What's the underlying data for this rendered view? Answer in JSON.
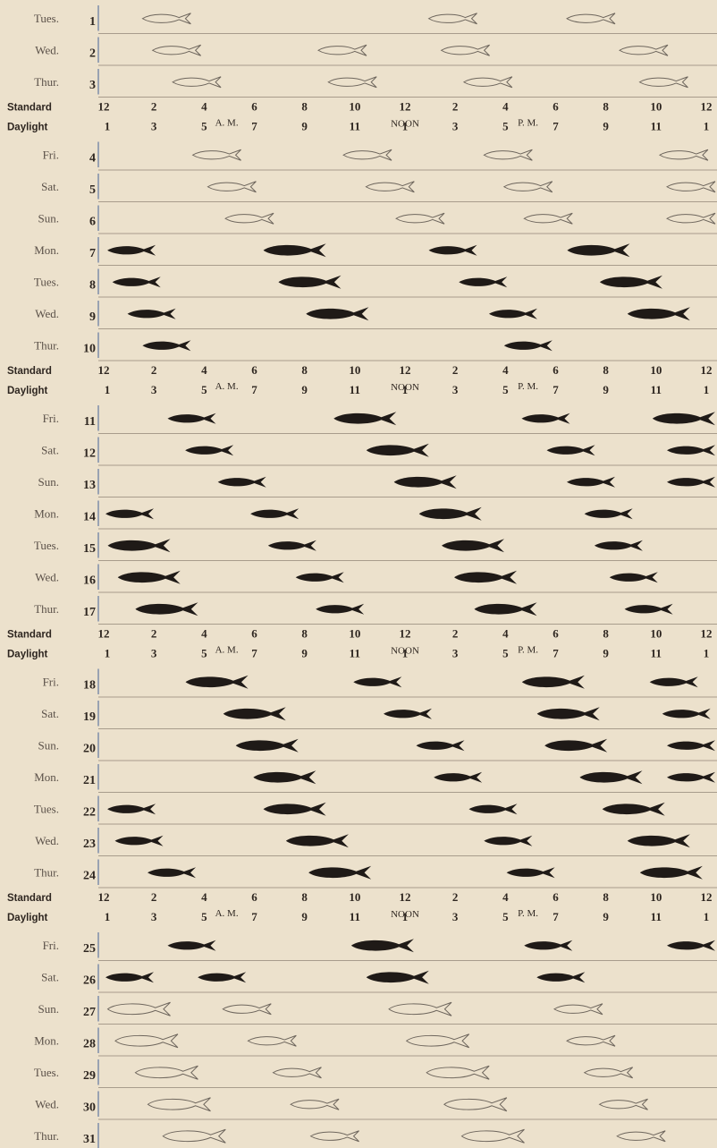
{
  "chart_data": {
    "type": "scatter",
    "description_units": "hours of standard time (0-24)",
    "days": [
      {
        "day": "Tues.",
        "date": "1",
        "marks": [
          {
            "time": 2.4,
            "size": "small",
            "active": false
          },
          {
            "time": 13.8,
            "size": "small",
            "active": false
          },
          {
            "time": 19.3,
            "size": "small",
            "active": false
          }
        ]
      },
      {
        "day": "Wed.",
        "date": "2",
        "marks": [
          {
            "time": 2.8,
            "size": "small",
            "active": false
          },
          {
            "time": 9.4,
            "size": "small",
            "active": false
          },
          {
            "time": 14.3,
            "size": "small",
            "active": false
          },
          {
            "time": 21.4,
            "size": "small",
            "active": false
          }
        ]
      },
      {
        "day": "Thur.",
        "date": "3",
        "marks": [
          {
            "time": 3.6,
            "size": "small",
            "active": false
          },
          {
            "time": 9.8,
            "size": "small",
            "active": false
          },
          {
            "time": 15.2,
            "size": "small",
            "active": false
          },
          {
            "time": 22.2,
            "size": "small",
            "active": false
          }
        ]
      },
      {
        "day": "Fri.",
        "date": "4",
        "marks": [
          {
            "time": 4.4,
            "size": "small",
            "active": false
          },
          {
            "time": 10.4,
            "size": "small",
            "active": false
          },
          {
            "time": 16.0,
            "size": "small",
            "active": false
          },
          {
            "time": 23.0,
            "size": "small",
            "active": false
          }
        ]
      },
      {
        "day": "Sat.",
        "date": "5",
        "marks": [
          {
            "time": 5.0,
            "size": "small",
            "active": false
          },
          {
            "time": 11.3,
            "size": "small",
            "active": false
          },
          {
            "time": 16.8,
            "size": "small",
            "active": false
          },
          {
            "time": 23.5,
            "size": "small",
            "active": false
          }
        ]
      },
      {
        "day": "Sun.",
        "date": "6",
        "marks": [
          {
            "time": 5.7,
            "size": "small",
            "active": false
          },
          {
            "time": 12.5,
            "size": "small",
            "active": false
          },
          {
            "time": 17.6,
            "size": "small",
            "active": false
          },
          {
            "time": 23.8,
            "size": "small",
            "active": false
          }
        ]
      },
      {
        "day": "Mon.",
        "date": "7",
        "marks": [
          {
            "time": 1.0,
            "size": "small",
            "active": true
          },
          {
            "time": 7.5,
            "size": "medium",
            "active": true
          },
          {
            "time": 13.8,
            "size": "small",
            "active": true
          },
          {
            "time": 19.6,
            "size": "medium",
            "active": true
          }
        ]
      },
      {
        "day": "Tues.",
        "date": "8",
        "marks": [
          {
            "time": 1.2,
            "size": "small",
            "active": true
          },
          {
            "time": 8.1,
            "size": "medium",
            "active": true
          },
          {
            "time": 15.0,
            "size": "small",
            "active": true
          },
          {
            "time": 20.9,
            "size": "medium",
            "active": true
          }
        ]
      },
      {
        "day": "Wed.",
        "date": "9",
        "marks": [
          {
            "time": 1.8,
            "size": "small",
            "active": true
          },
          {
            "time": 9.2,
            "size": "medium",
            "active": true
          },
          {
            "time": 16.2,
            "size": "small",
            "active": true
          },
          {
            "time": 22.0,
            "size": "medium",
            "active": true
          }
        ]
      },
      {
        "day": "Thur.",
        "date": "10",
        "marks": [
          {
            "time": 2.4,
            "size": "small",
            "active": true
          },
          {
            "time": 16.8,
            "size": "small",
            "active": true
          }
        ]
      },
      {
        "day": "Fri.",
        "date": "11",
        "marks": [
          {
            "time": 3.4,
            "size": "small",
            "active": true
          },
          {
            "time": 10.3,
            "size": "medium",
            "active": true
          },
          {
            "time": 17.5,
            "size": "small",
            "active": true
          },
          {
            "time": 23.0,
            "size": "medium",
            "active": true
          }
        ]
      },
      {
        "day": "Sat.",
        "date": "12",
        "marks": [
          {
            "time": 4.1,
            "size": "small",
            "active": true
          },
          {
            "time": 11.6,
            "size": "medium",
            "active": true
          },
          {
            "time": 18.5,
            "size": "small",
            "active": true
          },
          {
            "time": 23.7,
            "size": "small",
            "active": true
          }
        ]
      },
      {
        "day": "Sun.",
        "date": "13",
        "marks": [
          {
            "time": 5.4,
            "size": "small",
            "active": true
          },
          {
            "time": 12.7,
            "size": "medium",
            "active": true
          },
          {
            "time": 19.3,
            "size": "small",
            "active": true
          },
          {
            "time": 23.9,
            "size": "small",
            "active": true
          }
        ]
      },
      {
        "day": "Mon.",
        "date": "14",
        "marks": [
          {
            "time": 0.5,
            "size": "small",
            "active": true
          },
          {
            "time": 6.7,
            "size": "small",
            "active": true
          },
          {
            "time": 13.7,
            "size": "medium",
            "active": true
          },
          {
            "time": 20.0,
            "size": "small",
            "active": true
          }
        ]
      },
      {
        "day": "Tues.",
        "date": "15",
        "marks": [
          {
            "time": 1.3,
            "size": "medium",
            "active": true
          },
          {
            "time": 7.4,
            "size": "small",
            "active": true
          },
          {
            "time": 14.6,
            "size": "medium",
            "active": true
          },
          {
            "time": 20.4,
            "size": "small",
            "active": true
          }
        ]
      },
      {
        "day": "Wed.",
        "date": "16",
        "marks": [
          {
            "time": 1.7,
            "size": "medium",
            "active": true
          },
          {
            "time": 8.5,
            "size": "small",
            "active": true
          },
          {
            "time": 15.1,
            "size": "medium",
            "active": true
          },
          {
            "time": 21.0,
            "size": "small",
            "active": true
          }
        ]
      },
      {
        "day": "Thur.",
        "date": "17",
        "marks": [
          {
            "time": 2.4,
            "size": "medium",
            "active": true
          },
          {
            "time": 9.3,
            "size": "small",
            "active": true
          },
          {
            "time": 15.9,
            "size": "medium",
            "active": true
          },
          {
            "time": 21.6,
            "size": "small",
            "active": true
          }
        ]
      },
      {
        "day": "Fri.",
        "date": "18",
        "marks": [
          {
            "time": 4.4,
            "size": "medium",
            "active": true
          },
          {
            "time": 10.8,
            "size": "small",
            "active": true
          },
          {
            "time": 17.8,
            "size": "medium",
            "active": true
          },
          {
            "time": 22.6,
            "size": "small",
            "active": true
          }
        ]
      },
      {
        "day": "Sat.",
        "date": "19",
        "marks": [
          {
            "time": 5.9,
            "size": "medium",
            "active": true
          },
          {
            "time": 12.0,
            "size": "small",
            "active": true
          },
          {
            "time": 18.4,
            "size": "medium",
            "active": true
          },
          {
            "time": 23.1,
            "size": "small",
            "active": true
          }
        ]
      },
      {
        "day": "Sun.",
        "date": "20",
        "marks": [
          {
            "time": 6.4,
            "size": "medium",
            "active": true
          },
          {
            "time": 13.3,
            "size": "small",
            "active": true
          },
          {
            "time": 18.7,
            "size": "medium",
            "active": true
          },
          {
            "time": 23.6,
            "size": "small",
            "active": true
          }
        ]
      },
      {
        "day": "Mon.",
        "date": "21",
        "marks": [
          {
            "time": 7.1,
            "size": "medium",
            "active": true
          },
          {
            "time": 14.0,
            "size": "small",
            "active": true
          },
          {
            "time": 20.1,
            "size": "medium",
            "active": true
          },
          {
            "time": 23.8,
            "size": "small",
            "active": true
          }
        ]
      },
      {
        "day": "Tues.",
        "date": "22",
        "marks": [
          {
            "time": 1.0,
            "size": "small",
            "active": true
          },
          {
            "time": 7.5,
            "size": "medium",
            "active": true
          },
          {
            "time": 15.4,
            "size": "small",
            "active": true
          },
          {
            "time": 21.0,
            "size": "medium",
            "active": true
          }
        ]
      },
      {
        "day": "Wed.",
        "date": "23",
        "marks": [
          {
            "time": 1.3,
            "size": "small",
            "active": true
          },
          {
            "time": 8.4,
            "size": "medium",
            "active": true
          },
          {
            "time": 16.0,
            "size": "small",
            "active": true
          },
          {
            "time": 22.0,
            "size": "medium",
            "active": true
          }
        ]
      },
      {
        "day": "Thur.",
        "date": "24",
        "marks": [
          {
            "time": 2.6,
            "size": "small",
            "active": true
          },
          {
            "time": 9.3,
            "size": "medium",
            "active": true
          },
          {
            "time": 16.9,
            "size": "small",
            "active": true
          },
          {
            "time": 22.5,
            "size": "medium",
            "active": true
          }
        ]
      },
      {
        "day": "Fri.",
        "date": "25",
        "marks": [
          {
            "time": 3.4,
            "size": "small",
            "active": true
          },
          {
            "time": 11.0,
            "size": "medium",
            "active": true
          },
          {
            "time": 17.6,
            "size": "small",
            "active": true
          },
          {
            "time": 23.3,
            "size": "small",
            "active": true
          }
        ]
      },
      {
        "day": "Sat.",
        "date": "26",
        "marks": [
          {
            "time": 0.3,
            "size": "small",
            "active": true
          },
          {
            "time": 4.6,
            "size": "small",
            "active": true
          },
          {
            "time": 11.6,
            "size": "medium",
            "active": true
          },
          {
            "time": 18.1,
            "size": "small",
            "active": true
          }
        ]
      },
      {
        "day": "Sun.",
        "date": "27",
        "marks": [
          {
            "time": 1.3,
            "size": "medium",
            "active": false
          },
          {
            "time": 5.6,
            "size": "small",
            "active": false
          },
          {
            "time": 12.5,
            "size": "medium",
            "active": false
          },
          {
            "time": 18.8,
            "size": "small",
            "active": false
          }
        ]
      },
      {
        "day": "Mon.",
        "date": "28",
        "marks": [
          {
            "time": 1.6,
            "size": "medium",
            "active": false
          },
          {
            "time": 6.6,
            "size": "small",
            "active": false
          },
          {
            "time": 13.2,
            "size": "medium",
            "active": false
          },
          {
            "time": 19.3,
            "size": "small",
            "active": false
          }
        ]
      },
      {
        "day": "Tues.",
        "date": "29",
        "marks": [
          {
            "time": 2.4,
            "size": "medium",
            "active": false
          },
          {
            "time": 7.6,
            "size": "small",
            "active": false
          },
          {
            "time": 14.0,
            "size": "medium",
            "active": false
          },
          {
            "time": 20.0,
            "size": "small",
            "active": false
          }
        ]
      },
      {
        "day": "Wed.",
        "date": "30",
        "marks": [
          {
            "time": 2.9,
            "size": "medium",
            "active": false
          },
          {
            "time": 8.3,
            "size": "small",
            "active": false
          },
          {
            "time": 14.7,
            "size": "medium",
            "active": false
          },
          {
            "time": 20.6,
            "size": "small",
            "active": false
          }
        ]
      },
      {
        "day": "Thur.",
        "date": "31",
        "marks": [
          {
            "time": 3.5,
            "size": "medium",
            "active": false
          },
          {
            "time": 9.1,
            "size": "small",
            "active": false
          },
          {
            "time": 15.4,
            "size": "medium",
            "active": false
          },
          {
            "time": 21.3,
            "size": "small",
            "active": false
          }
        ]
      }
    ],
    "time_axis": {
      "standard_label": "Standard",
      "daylight_label": "Daylight",
      "standard_ticks": [
        "12",
        "2",
        "4",
        "6",
        "8",
        "10",
        "12",
        "2",
        "4",
        "6",
        "8",
        "10",
        "12"
      ],
      "daylight_ticks": [
        "1",
        "3",
        "5",
        "7",
        "9",
        "11",
        "1",
        "3",
        "5",
        "7",
        "9",
        "11",
        "1"
      ],
      "am_label": "A. M.",
      "pm_label": "P. M.",
      "noon_label": "NOON",
      "xlim": [
        0,
        24
      ]
    },
    "colors": {
      "background": "#ece1cc",
      "active_fish": "#1f1a17",
      "inactive_fish_outline": "#6e665d",
      "rule": "#a89c8c",
      "left_rule": "#6d7fa5"
    }
  }
}
